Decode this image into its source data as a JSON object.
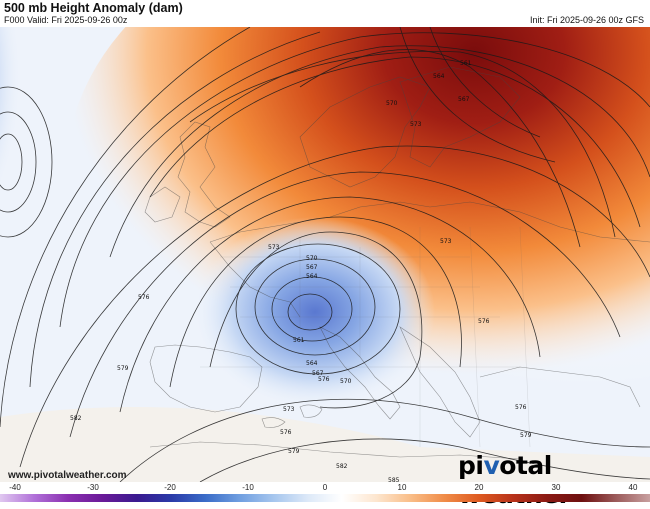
{
  "header": {
    "title": "500 mb Height Anomaly (dam)",
    "valid": "F000 Valid: Fri 2025-09-26 00z",
    "init": "Init: Fri 2025-09-26 00z GFS"
  },
  "map": {
    "contour_labels": [
      "561",
      "564",
      "567",
      "570",
      "573",
      "576",
      "579",
      "582",
      "585",
      "561",
      "564",
      "567",
      "570",
      "573",
      "573",
      "576",
      "576",
      "579",
      "582",
      "582",
      "573",
      "576",
      "576",
      "579",
      "570",
      "567",
      "564"
    ]
  },
  "footer": {
    "url": "www.pivotalweather.com",
    "logo": "pivotal weather"
  },
  "colorbar": {
    "ticks": [
      "-40",
      "-30",
      "-20",
      "-10",
      "0",
      "10",
      "20",
      "30",
      "40"
    ],
    "colors": [
      "#e0c8f0",
      "#b070d8",
      "#8a2fb0",
      "#6a1a98",
      "#3a1a90",
      "#2a3aa8",
      "#3a6cc8",
      "#6f9ee0",
      "#a6c6ee",
      "#dde9f8",
      "#ffffff",
      "#fde6cf",
      "#f9bd87",
      "#f08c48",
      "#de5a20",
      "#b8321a",
      "#8b1a14",
      "#6e1010",
      "#9b5a5a",
      "#c8a0a0"
    ]
  }
}
